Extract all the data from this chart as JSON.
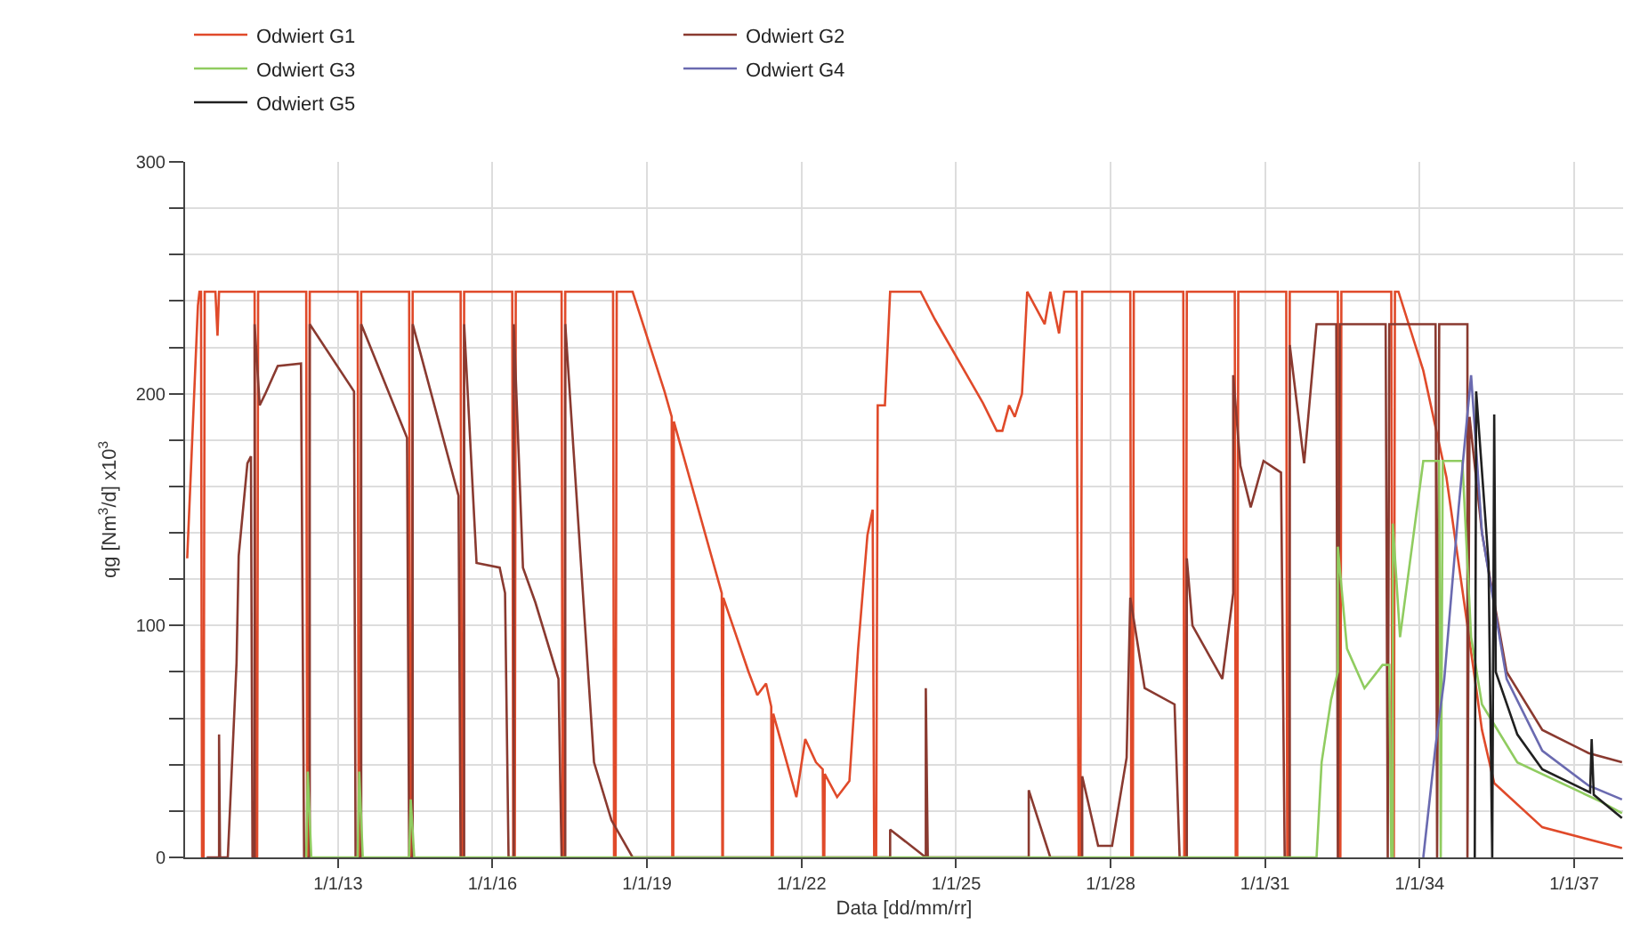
{
  "chart_data": {
    "type": "line",
    "xlabel": "Data [dd/mm/rr]",
    "ylabel": "qg [Nm$^{3}$/d] x10$^{3}$",
    "xlim": [
      "2010-01-12",
      "2037-12-14"
    ],
    "ylim": [
      0,
      300
    ],
    "xticks": [
      {
        "value": "2013-01-01",
        "label": "1/1/13"
      },
      {
        "value": "2016-01-01",
        "label": "1/1/16"
      },
      {
        "value": "2019-01-01",
        "label": "1/1/19"
      },
      {
        "value": "2022-01-01",
        "label": "1/1/22"
      },
      {
        "value": "2025-01-01",
        "label": "1/1/25"
      },
      {
        "value": "2028-01-01",
        "label": "1/1/28"
      },
      {
        "value": "2031-01-01",
        "label": "1/1/31"
      },
      {
        "value": "2034-01-01",
        "label": "1/1/34"
      },
      {
        "value": "2037-01-01",
        "label": "1/1/37"
      }
    ],
    "yticks": [
      0,
      {
        "value": 20,
        "label": null
      },
      {
        "value": 40,
        "label": null
      },
      {
        "value": 60,
        "label": null
      },
      {
        "value": 80,
        "label": null
      },
      100,
      {
        "value": 120,
        "label": null
      },
      {
        "value": 140,
        "label": null
      },
      {
        "value": 160,
        "label": null
      },
      {
        "value": 180,
        "label": null
      },
      200,
      {
        "value": 220,
        "label": null
      },
      {
        "value": 240,
        "label": null
      },
      {
        "value": 260,
        "label": null
      },
      {
        "value": 280,
        "label": null
      },
      300
    ],
    "grid": true,
    "legend": "top left",
    "marker": "none",
    "line_style": "solid",
    "series": [
      {
        "name": "Odwiert G1",
        "color": "#e04a2a",
        "x": [
          "2010-01-27",
          "2010-04-13",
          "2010-04-24",
          "2010-05-05",
          "2010-05-12",
          "2010-05-23",
          "2010-05-31",
          "2010-08-15",
          "2010-08-30",
          "2010-09-10",
          "2011-05-20",
          "2011-05-27",
          "2011-06-07",
          "2011-06-14",
          "2012-05-20",
          "2012-05-27",
          "2012-06-07",
          "2012-06-14",
          "2013-05-20",
          "2013-05-27",
          "2013-06-07",
          "2013-06-14",
          "2014-05-20",
          "2014-05-27",
          "2014-06-07",
          "2014-06-14",
          "2015-05-20",
          "2015-05-27",
          "2015-06-07",
          "2015-06-14",
          "2016-05-20",
          "2016-05-27",
          "2016-06-07",
          "2016-06-14",
          "2017-05-05",
          "2017-05-12",
          "2017-05-23",
          "2017-05-31",
          "2018-05-05",
          "2018-05-12",
          "2018-05-23",
          "2018-05-31",
          "2018-09-21",
          "2019-05-05",
          "2019-06-25",
          "2019-06-29",
          "2019-07-06",
          "2019-07-10",
          "2020-06-14",
          "2020-06-18",
          "2020-06-22",
          "2020-06-25",
          "2020-12-21",
          "2021-02-21",
          "2021-04-24",
          "2021-05-31",
          "2021-06-03",
          "2021-06-11",
          "2021-06-14",
          "2021-11-25",
          "2022-01-27",
          "2022-04-13",
          "2022-05-31",
          "2022-06-03",
          "2022-06-11",
          "2022-06-14",
          "2022-09-10",
          "2022-12-06",
          "2023-02-06",
          "2023-04-13",
          "2023-05-20",
          "2023-05-31",
          "2023-06-14",
          "2023-06-25",
          "2023-08-15",
          "2023-09-21",
          "2024-04-24",
          "2024-08-04",
          "2025-05-05",
          "2025-07-10",
          "2025-10-16",
          "2025-11-25",
          "2026-01-12",
          "2026-02-21",
          "2026-04-13",
          "2026-05-20",
          "2026-09-21",
          "2026-10-31",
          "2027-01-01",
          "2027-02-06",
          "2027-05-05",
          "2027-05-20",
          "2027-05-31",
          "2027-06-14",
          "2028-05-20",
          "2028-05-27",
          "2028-06-07",
          "2028-06-14",
          "2029-05-31",
          "2029-06-07",
          "2029-06-18",
          "2029-06-25",
          "2030-05-31",
          "2030-06-07",
          "2030-06-18",
          "2030-06-25",
          "2031-05-31",
          "2031-06-07",
          "2031-06-18",
          "2031-06-25",
          "2032-05-31",
          "2032-06-07",
          "2032-06-18",
          "2032-06-25",
          "2033-06-14",
          "2033-06-22",
          "2033-07-02",
          "2033-07-10",
          "2033-08-04",
          "2034-01-27",
          "2034-07-10",
          "2034-12-06",
          "2035-03-19",
          "2035-06-14",
          "2036-05-20",
          "2037-12-06"
        ],
        "values": [
          129,
          238,
          244,
          244,
          0,
          0,
          244,
          244,
          225,
          244,
          244,
          0,
          0,
          244,
          244,
          0,
          0,
          244,
          244,
          0,
          0,
          244,
          244,
          0,
          0,
          244,
          244,
          0,
          0,
          244,
          244,
          0,
          0,
          244,
          244,
          0,
          0,
          244,
          244,
          0,
          0,
          244,
          244,
          201,
          190,
          0,
          0,
          188,
          114,
          0,
          0,
          112,
          80,
          70,
          75,
          65,
          0,
          0,
          62,
          26,
          51,
          41,
          38,
          0,
          0,
          36,
          26,
          33,
          90,
          139,
          150,
          0,
          0,
          195,
          195,
          244,
          244,
          232,
          203,
          196,
          184,
          184,
          195,
          190,
          200,
          244,
          230,
          244,
          226,
          244,
          244,
          0,
          0,
          244,
          244,
          0,
          0,
          244,
          244,
          0,
          0,
          244,
          244,
          0,
          0,
          244,
          244,
          0,
          0,
          244,
          244,
          0,
          0,
          244,
          244,
          0,
          0,
          244,
          244,
          210,
          164,
          100,
          55,
          32,
          13,
          4
        ]
      },
      {
        "name": "Odwiert G2",
        "color": "#8a3a30",
        "x": [
          "2010-06-14",
          "2010-09-10",
          "2010-09-10",
          "2010-09-17",
          "2010-11-11",
          "2011-01-12",
          "2011-01-27",
          "2011-03-30",
          "2011-04-24",
          "2011-05-05",
          "2011-05-20",
          "2011-05-20",
          "2011-06-25",
          "2011-08-04",
          "2011-10-31",
          "2012-04-13",
          "2012-05-05",
          "2012-06-14",
          "2012-06-14",
          "2013-04-24",
          "2013-05-05",
          "2013-06-14",
          "2013-06-14",
          "2014-05-05",
          "2014-05-20",
          "2014-06-14",
          "2014-06-14",
          "2015-05-05",
          "2015-05-20",
          "2015-06-14",
          "2015-06-14",
          "2015-09-10",
          "2016-02-21",
          "2016-03-30",
          "2016-04-24",
          "2016-05-31",
          "2016-05-31",
          "2016-08-04",
          "2016-10-31",
          "2017-04-13",
          "2017-05-05",
          "2017-05-31",
          "2017-05-31",
          "2017-12-21",
          "2018-04-24",
          "2018-09-21",
          "2023-09-21",
          "2023-09-21",
          "2024-05-31",
          "2024-05-31",
          "2024-06-14",
          "2026-05-31",
          "2026-05-31",
          "2026-10-31",
          "2027-06-14",
          "2027-06-14",
          "2027-10-05",
          "2028-01-12",
          "2028-04-24",
          "2028-05-20",
          "2028-08-30",
          "2029-03-30",
          "2029-05-05",
          "2029-06-25",
          "2029-06-25",
          "2029-08-04",
          "2030-03-04",
          "2030-05-20",
          "2030-05-20",
          "2030-07-10",
          "2030-09-21",
          "2030-12-21",
          "2031-04-24",
          "2031-05-20",
          "2031-06-25",
          "2031-06-25",
          "2031-10-05",
          "2032-01-01",
          "2032-05-20",
          "2032-05-31",
          "2032-06-14",
          "2033-05-05",
          "2033-05-20",
          "2033-05-31",
          "2034-04-24",
          "2034-05-05",
          "2034-05-20",
          "2034-12-06",
          "2034-12-06",
          "2034-12-21",
          "2035-03-19",
          "2035-09-10",
          "2036-05-20",
          "2037-04-13",
          "2037-12-06"
        ],
        "values": [
          0,
          0,
          53,
          0,
          0,
          84,
          130,
          170,
          173,
          0,
          0,
          230,
          195,
          200,
          212,
          213,
          0,
          0,
          230,
          201,
          0,
          0,
          230,
          181,
          0,
          0,
          230,
          156,
          0,
          0,
          230,
          127,
          125,
          114,
          0,
          0,
          230,
          125,
          110,
          77,
          0,
          0,
          230,
          41,
          16,
          0,
          0,
          12,
          0,
          73,
          0,
          0,
          29,
          0,
          0,
          35,
          5,
          5,
          43,
          112,
          73,
          66,
          0,
          0,
          129,
          100,
          77,
          114,
          208,
          169,
          151,
          171,
          166,
          0,
          0,
          221,
          170,
          230,
          230,
          0,
          230,
          230,
          0,
          230,
          230,
          0,
          230,
          230,
          0,
          190,
          140,
          80,
          55,
          45,
          41
        ]
      },
      {
        "name": "Odwiert G3",
        "color": "#90cc60",
        "x": [
          "2012-05-20",
          "2012-05-31",
          "2012-06-25",
          "2013-05-20",
          "2013-05-31",
          "2013-06-25",
          "2014-05-20",
          "2014-05-31",
          "2014-06-25",
          "2032-01-01",
          "2032-02-06",
          "2032-04-13",
          "2032-05-31",
          "2032-05-31",
          "2032-08-04",
          "2032-12-06",
          "2033-04-13",
          "2033-05-31",
          "2033-06-14",
          "2033-06-25",
          "2033-06-25",
          "2033-08-15",
          "2034-01-27",
          "2034-05-20",
          "2034-05-31",
          "2034-06-14",
          "2034-10-31",
          "2035-01-01",
          "2035-03-19",
          "2035-11-25",
          "2037-07-10",
          "2037-12-06"
        ],
        "values": [
          0,
          37,
          0,
          0,
          37,
          0,
          0,
          25,
          0,
          0,
          41,
          68,
          80,
          134,
          90,
          73,
          83,
          83,
          0,
          0,
          144,
          95,
          171,
          171,
          0,
          171,
          171,
          95,
          66,
          41,
          24,
          19
        ]
      },
      {
        "name": "Odwiert G4",
        "color": "#6a6ab0",
        "x": [
          "2034-01-27",
          "2034-04-24",
          "2034-06-25",
          "2034-10-05",
          "2035-01-01",
          "2035-03-19",
          "2035-09-10",
          "2036-05-20",
          "2037-04-13",
          "2037-12-06"
        ],
        "values": [
          0,
          48,
          77,
          151,
          208,
          140,
          77,
          46,
          31,
          25
        ]
      },
      {
        "name": "Odwiert G5",
        "color": "#202020",
        "x": [
          "2035-01-27",
          "2035-02-06",
          "2035-05-05",
          "2035-05-31",
          "2035-06-14",
          "2035-06-25",
          "2035-11-25",
          "2036-05-20",
          "2037-04-24",
          "2037-05-05",
          "2037-05-20",
          "2037-12-06"
        ],
        "values": [
          0,
          201,
          127,
          0,
          191,
          80,
          53,
          38,
          28,
          51,
          27,
          17
        ]
      }
    ]
  }
}
